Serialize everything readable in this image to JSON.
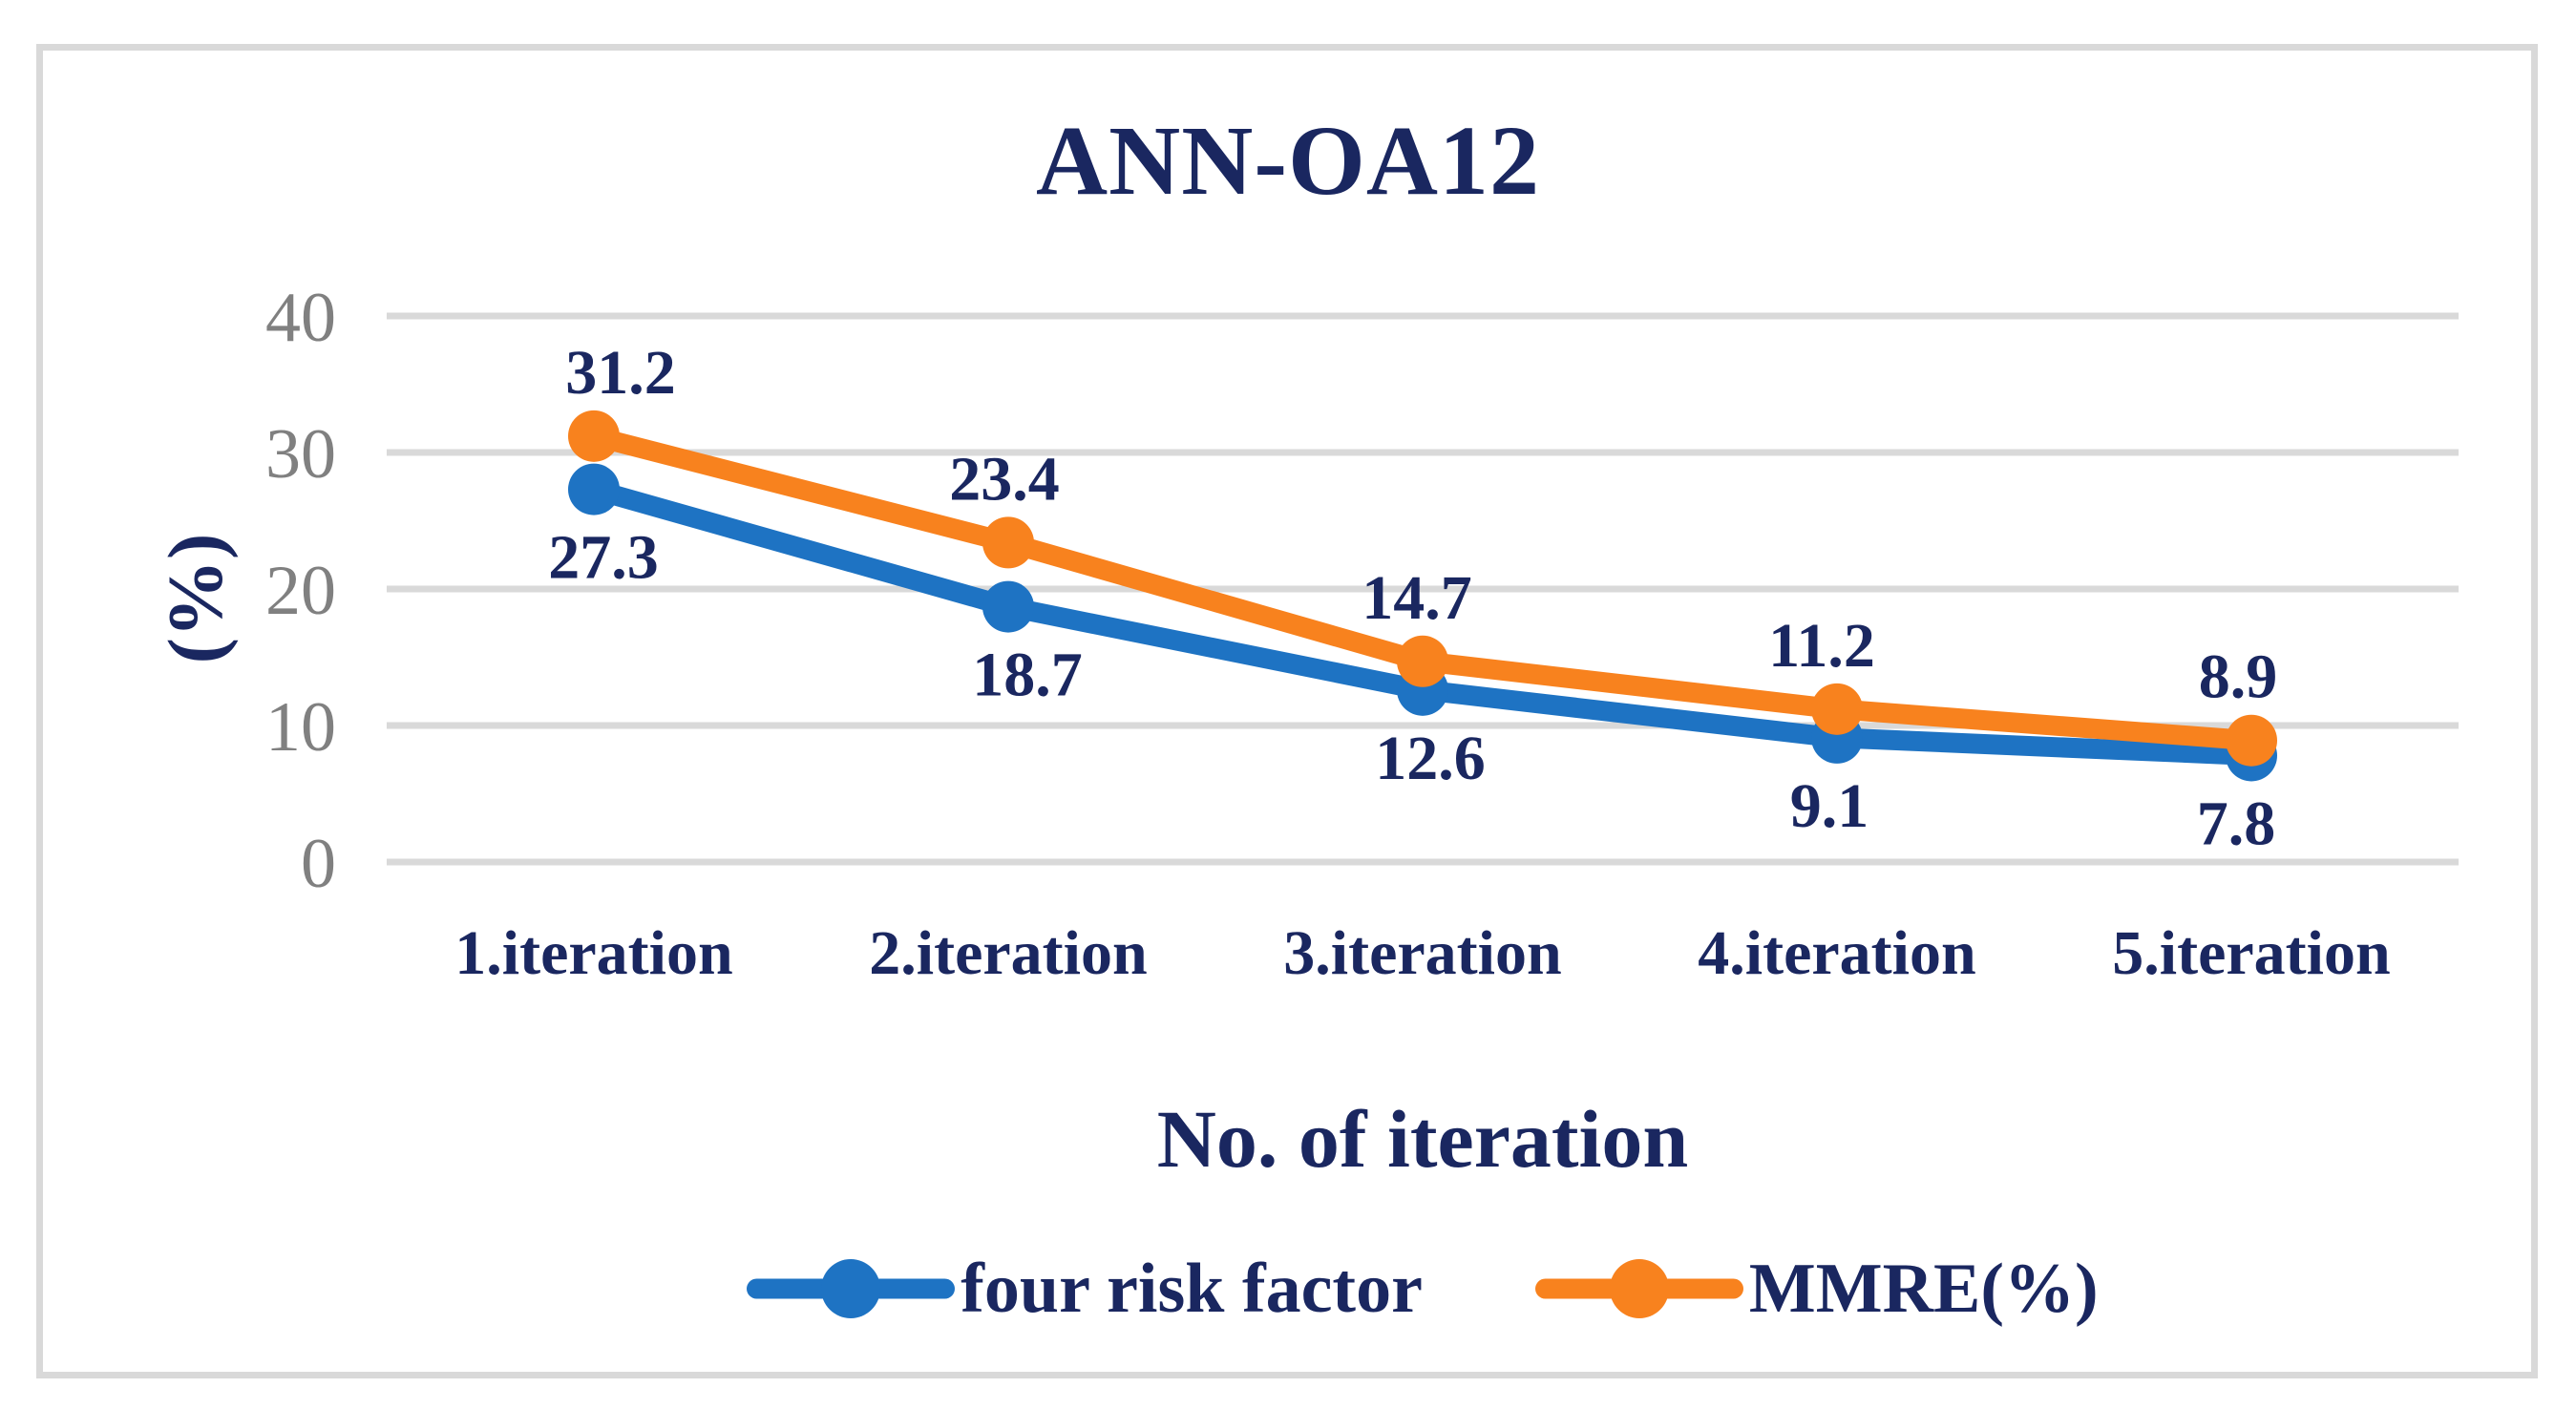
{
  "title": "ANN-OA12",
  "colors": {
    "text_navy": "#1A2760",
    "tick_gray": "#808080",
    "gridline": "#D9D9D9",
    "frame_border": "#D9D9D9",
    "series_blue": "#1E73C3",
    "series_orange": "#F8821E",
    "background": "#FFFFFF"
  },
  "chart_data": {
    "type": "line",
    "title": "ANN-OA12",
    "categories": [
      "1.iteration",
      "2.iteration",
      "3.iteration",
      "4.iteration",
      "5.iteration"
    ],
    "series": [
      {
        "name": "four risk factor",
        "color": "#1E73C3",
        "values": [
          27.3,
          18.7,
          12.6,
          9.1,
          7.8
        ],
        "marker": "circle",
        "data_label_position": "below"
      },
      {
        "name": "MMRE(%)",
        "color": "#F8821E",
        "values": [
          31.2,
          23.4,
          14.7,
          11.2,
          8.9
        ],
        "marker": "circle",
        "data_label_position": "above"
      }
    ],
    "data_labels": {
      "four risk factor": [
        "27.3",
        "18.7",
        "12.6",
        "9.1",
        "7.8"
      ],
      "MMRE(%)": [
        "31.2",
        "23.4",
        "14.7",
        "11.2",
        "8.9"
      ]
    },
    "xlabel": "No. of iteration",
    "ylabel": "(%)",
    "ylim": [
      0,
      40
    ],
    "yticks": [
      "0",
      "10",
      "20",
      "30",
      "40"
    ],
    "grid": true,
    "legend_position": "bottom"
  }
}
